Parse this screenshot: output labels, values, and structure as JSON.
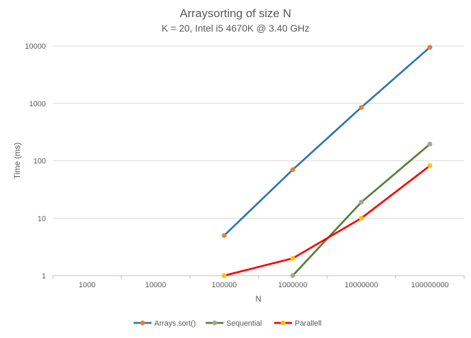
{
  "chart_data": {
    "type": "line",
    "title": "Arraysorting of size N",
    "subtitle": "K = 20, Intel i5 4670K @ 3.40 GHz",
    "xlabel": "N",
    "ylabel": "Time (ms)",
    "categories": [
      "1000",
      "10000",
      "100000",
      "1000000",
      "10000000",
      "100000000"
    ],
    "yscale": "log",
    "ylim": [
      1,
      10000
    ],
    "yticks": [
      "1",
      "10",
      "100",
      "1000",
      "10000"
    ],
    "grid": "horizontal",
    "legend": "bottom",
    "series": [
      {
        "name": "Arrays.sort()",
        "color": "#2E75B6",
        "marker_color": "#ED7D31",
        "values": [
          null,
          null,
          5,
          70,
          850,
          9500
        ]
      },
      {
        "name": "Sequential",
        "color": "#548235",
        "marker_color": "#A5A5A5",
        "values": [
          null,
          null,
          null,
          1,
          19,
          195
        ]
      },
      {
        "name": "Parallell",
        "color": "#FF0000",
        "marker_color": "#FFC000",
        "values": [
          null,
          null,
          1,
          2,
          10,
          82
        ]
      }
    ]
  }
}
